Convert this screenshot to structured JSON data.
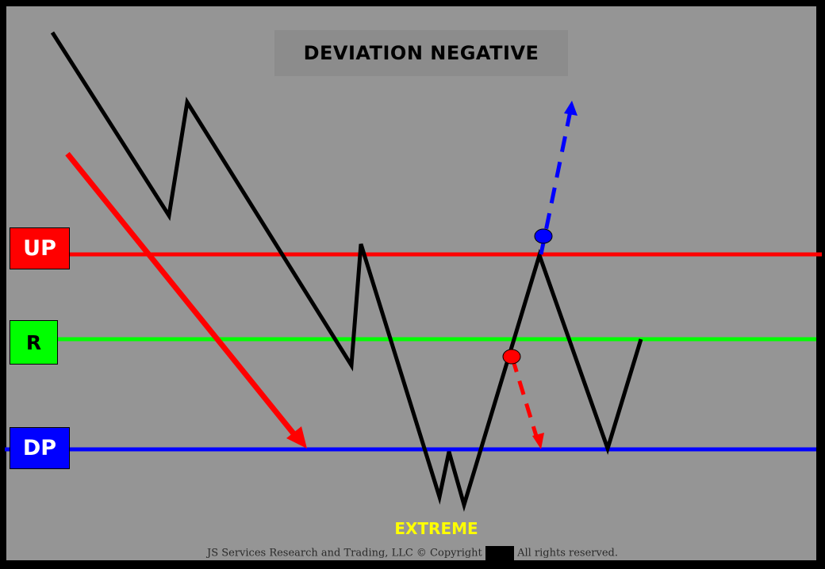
{
  "title": "DEVIATION NEGATIVE",
  "levels": {
    "up": {
      "label": "UP",
      "color": "#ff0000",
      "text_color": "#ffffff"
    },
    "r": {
      "label": "R",
      "color": "#00ff00",
      "text_color": "#000000"
    },
    "dp": {
      "label": "DP",
      "color": "#0000ff",
      "text_color": "#ffffff"
    }
  },
  "extreme_label": "EXTREME",
  "extreme_color": "#ffff00",
  "copyright": {
    "left": "JS Services Research and Trading, LLC © Copyright",
    "right": "All rights reserved."
  },
  "colors": {
    "background": "#959595",
    "frame": "#000000",
    "price_path": "#000000",
    "trend_arrow": "#ff0000",
    "breakout_up": "#0000ff",
    "breakdown": "#ff0000"
  },
  "markers": [
    {
      "name": "blue-breakout-dot",
      "color": "#0000ff"
    },
    {
      "name": "red-breakdown-dot",
      "color": "#ff0000"
    }
  ]
}
